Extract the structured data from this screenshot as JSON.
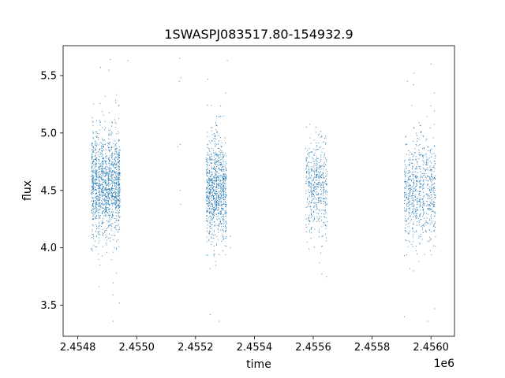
{
  "chart_data": {
    "type": "scatter",
    "title": "1SWASPJ083517.80-154932.9",
    "xlabel": "time",
    "ylabel": "flux",
    "x_offset_label": "1e6",
    "xlim": [
      2.45475,
      2.45608
    ],
    "ylim": [
      3.23,
      5.76
    ],
    "x_ticks": [
      2.4548,
      2.455,
      2.4552,
      2.4554,
      2.4556,
      2.4558,
      2.456
    ],
    "x_tick_labels": [
      "2.4548",
      "2.4550",
      "2.4552",
      "2.4554",
      "2.4556",
      "2.4558",
      "2.4560"
    ],
    "y_ticks": [
      3.5,
      4.0,
      4.5,
      5.0,
      5.5
    ],
    "y_tick_labels": [
      "3.5",
      "4.0",
      "4.5",
      "5.0",
      "5.5"
    ],
    "grid": false,
    "point_color": "#1f77b4",
    "series": [
      {
        "segments": [
          {
            "x_start": 2.454845,
            "x_end": 2.454945,
            "center": 4.55,
            "spread": 0.22,
            "n": 1400
          },
          {
            "x_start": 2.455236,
            "x_end": 2.455306,
            "center": 4.5,
            "spread": 0.22,
            "n": 950
          },
          {
            "x_start": 2.455574,
            "x_end": 2.455648,
            "center": 4.55,
            "spread": 0.2,
            "n": 500
          },
          {
            "x_start": 2.455908,
            "x_end": 2.456017,
            "center": 4.5,
            "spread": 0.22,
            "n": 750
          }
        ],
        "outliers": [
          [
            2.455145,
            5.45
          ],
          [
            2.45515,
            5.48
          ],
          [
            2.45514,
            4.88
          ],
          [
            2.455148,
            4.9
          ],
          [
            2.455146,
            5.65
          ],
          [
            2.455148,
            4.5
          ],
          [
            2.455149,
            4.38
          ],
          [
            2.45492,
            3.36
          ],
          [
            2.45491,
            5.64
          ],
          [
            2.45497,
            5.63
          ],
          [
            2.45528,
            3.36
          ],
          [
            2.455308,
            5.63
          ],
          [
            2.45525,
            3.42
          ],
          [
            2.455318,
            4.1
          ],
          [
            2.455318,
            4.0
          ],
          [
            2.45591,
            3.4
          ],
          [
            2.45599,
            3.36
          ],
          [
            2.456001,
            5.6
          ],
          [
            2.45592,
            5.45
          ],
          [
            2.45594,
            5.42
          ]
        ]
      }
    ]
  }
}
